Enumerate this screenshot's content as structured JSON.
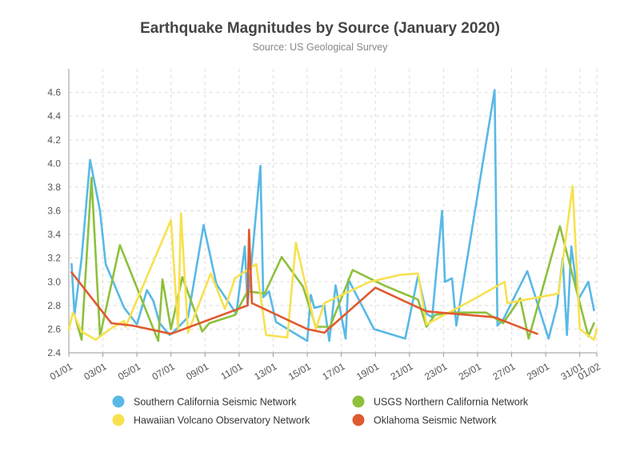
{
  "chart_data": {
    "type": "line",
    "title": "Earthquake Magnitudes by Source (January 2020)",
    "subtitle": "Source: US Geological Survey",
    "xlabel": "",
    "ylabel": "",
    "x_range": [
      "2020-01-01",
      "2020-02-01"
    ],
    "ylim": [
      2.4,
      4.8
    ],
    "y_ticks": [
      2.4,
      2.6,
      2.8,
      3.0,
      3.2,
      3.4,
      3.6,
      3.8,
      4.0,
      4.2,
      4.4,
      4.6
    ],
    "y_tick_labels": [
      "2.4",
      "2.6",
      "2.8",
      "3.0",
      "3.2",
      "3.4",
      "3.6",
      "3.8",
      "4.0",
      "4.2",
      "4.4",
      "4.6"
    ],
    "x_ticks": [
      "2020-01-01",
      "2020-01-03",
      "2020-01-05",
      "2020-01-07",
      "2020-01-09",
      "2020-01-11",
      "2020-01-13",
      "2020-01-15",
      "2020-01-17",
      "2020-01-19",
      "2020-01-21",
      "2020-01-23",
      "2020-01-25",
      "2020-01-27",
      "2020-01-29",
      "2020-01-31",
      "2020-02-01"
    ],
    "x_tick_labels": [
      "01/01",
      "03/01",
      "05/01",
      "07/01",
      "09/01",
      "11/01",
      "13/01",
      "15/01",
      "17/01",
      "19/01",
      "21/01",
      "23/01",
      "25/01",
      "27/01",
      "29/01",
      "31/01",
      "01/02"
    ],
    "grid": true,
    "grid_style": "dashed",
    "legend_position": "bottom",
    "series": [
      {
        "name": "Southern California Seismic Network",
        "color": "#58b9e6",
        "points": [
          [
            "2020-01-01 04:00",
            3.15
          ],
          [
            "2020-01-01 08:00",
            2.72
          ],
          [
            "2020-01-01 18:00",
            3.2
          ],
          [
            "2020-01-02 06:00",
            4.03
          ],
          [
            "2020-01-02 20:00",
            3.6
          ],
          [
            "2020-01-03 04:00",
            3.15
          ],
          [
            "2020-01-04 06:00",
            2.78
          ],
          [
            "2020-01-05 00:00",
            2.64
          ],
          [
            "2020-01-05 14:00",
            2.93
          ],
          [
            "2020-01-05 23:00",
            2.84
          ],
          [
            "2020-01-06 08:00",
            2.65
          ],
          [
            "2020-01-06 22:00",
            2.55
          ],
          [
            "2020-01-07 04:00",
            2.58
          ],
          [
            "2020-01-08 00:00",
            2.7
          ],
          [
            "2020-01-08 22:00",
            3.48
          ],
          [
            "2020-01-09 16:00",
            2.98
          ],
          [
            "2020-01-10 20:00",
            2.73
          ],
          [
            "2020-01-11 08:00",
            3.3
          ],
          [
            "2020-01-11 12:00",
            2.8
          ],
          [
            "2020-01-12 06:00",
            3.98
          ],
          [
            "2020-01-12 10:00",
            2.87
          ],
          [
            "2020-01-12 18:00",
            2.92
          ],
          [
            "2020-01-13 04:00",
            2.66
          ],
          [
            "2020-01-15 00:00",
            2.5
          ],
          [
            "2020-01-15 05:00",
            2.89
          ],
          [
            "2020-01-15 10:00",
            2.78
          ],
          [
            "2020-01-16 00:00",
            2.8
          ],
          [
            "2020-01-16 07:00",
            2.5
          ],
          [
            "2020-01-16 16:00",
            2.97
          ],
          [
            "2020-01-17 06:00",
            2.52
          ],
          [
            "2020-01-17 10:00",
            3.02
          ],
          [
            "2020-01-18 22:00",
            2.6
          ],
          [
            "2020-01-20 18:00",
            2.52
          ],
          [
            "2020-01-21 12:00",
            3.05
          ],
          [
            "2020-01-22 00:00",
            2.73
          ],
          [
            "2020-01-22 08:00",
            2.7
          ],
          [
            "2020-01-22 22:00",
            3.6
          ],
          [
            "2020-01-23 02:00",
            3.0
          ],
          [
            "2020-01-23 12:00",
            3.03
          ],
          [
            "2020-01-23 18:00",
            2.63
          ],
          [
            "2020-01-26 00:00",
            4.62
          ],
          [
            "2020-01-26 04:00",
            2.63
          ],
          [
            "2020-01-26 12:00",
            2.68
          ],
          [
            "2020-01-27 22:00",
            3.09
          ],
          [
            "2020-01-29 04:00",
            2.52
          ],
          [
            "2020-01-29 16:00",
            2.8
          ],
          [
            "2020-01-30 00:00",
            3.2
          ],
          [
            "2020-01-30 06:00",
            2.55
          ],
          [
            "2020-01-30 12:00",
            3.3
          ],
          [
            "2020-01-30 22:00",
            2.85
          ],
          [
            "2020-01-31 12:00",
            3.0
          ],
          [
            "2020-01-31 20:00",
            2.76
          ]
        ]
      },
      {
        "name": "USGS Northern California Network",
        "color": "#8dc03b",
        "points": [
          [
            "2020-01-01 10:00",
            2.68
          ],
          [
            "2020-01-01 18:00",
            2.51
          ],
          [
            "2020-01-02 08:00",
            3.88
          ],
          [
            "2020-01-02 20:00",
            2.54
          ],
          [
            "2020-01-04 00:00",
            3.31
          ],
          [
            "2020-01-06 06:00",
            2.5
          ],
          [
            "2020-01-06 12:00",
            3.02
          ],
          [
            "2020-01-07 00:00",
            2.6
          ],
          [
            "2020-01-07 16:00",
            3.04
          ],
          [
            "2020-01-08 20:00",
            2.58
          ],
          [
            "2020-01-09 06:00",
            2.65
          ],
          [
            "2020-01-10 18:00",
            2.72
          ],
          [
            "2020-01-11 12:00",
            2.92
          ],
          [
            "2020-01-12 12:00",
            2.9
          ],
          [
            "2020-01-13 12:00",
            3.21
          ],
          [
            "2020-01-14 18:00",
            2.96
          ],
          [
            "2020-01-15 12:00",
            2.62
          ],
          [
            "2020-01-16 08:00",
            2.62
          ],
          [
            "2020-01-17 16:00",
            3.1
          ],
          [
            "2020-01-19 12:00",
            2.97
          ],
          [
            "2020-01-21 12:00",
            2.85
          ],
          [
            "2020-01-22 00:00",
            2.62
          ],
          [
            "2020-01-22 12:00",
            2.72
          ],
          [
            "2020-01-23 12:00",
            2.74
          ],
          [
            "2020-01-25 12:00",
            2.74
          ],
          [
            "2020-01-26 12:00",
            2.65
          ],
          [
            "2020-01-27 12:00",
            2.86
          ],
          [
            "2020-01-28 00:00",
            2.52
          ],
          [
            "2020-01-29 20:00",
            3.47
          ],
          [
            "2020-01-31 12:00",
            2.54
          ],
          [
            "2020-01-31 20:00",
            2.65
          ]
        ]
      },
      {
        "name": "Hawaiian Volcano Observatory Network",
        "color": "#f7e14f",
        "points": [
          [
            "2020-01-01 00:00",
            2.6
          ],
          [
            "2020-01-01 06:00",
            2.74
          ],
          [
            "2020-01-01 18:00",
            2.58
          ],
          [
            "2020-01-02 14:00",
            2.51
          ],
          [
            "2020-01-03 10:00",
            2.6
          ],
          [
            "2020-01-04 06:00",
            2.67
          ],
          [
            "2020-01-04 08:00",
            2.62
          ],
          [
            "2020-01-07 00:00",
            3.52
          ],
          [
            "2020-01-07 10:00",
            2.6
          ],
          [
            "2020-01-07 14:00",
            3.58
          ],
          [
            "2020-01-08 00:00",
            2.57
          ],
          [
            "2020-01-09 08:00",
            3.07
          ],
          [
            "2020-01-10 04:00",
            2.77
          ],
          [
            "2020-01-10 18:00",
            3.03
          ],
          [
            "2020-01-11 12:00",
            3.1
          ],
          [
            "2020-01-12 00:00",
            3.15
          ],
          [
            "2020-01-12 14:00",
            2.55
          ],
          [
            "2020-01-13 20:00",
            2.53
          ],
          [
            "2020-01-14 08:00",
            3.33
          ],
          [
            "2020-01-15 12:00",
            2.6
          ],
          [
            "2020-01-16 00:00",
            2.82
          ],
          [
            "2020-01-18 16:00",
            3.0
          ],
          [
            "2020-01-20 12:00",
            3.06
          ],
          [
            "2020-01-21 12:00",
            3.07
          ],
          [
            "2020-01-22 00:00",
            2.64
          ],
          [
            "2020-01-24 18:00",
            2.85
          ],
          [
            "2020-01-26 14:00",
            3.0
          ],
          [
            "2020-01-26 18:00",
            2.82
          ],
          [
            "2020-01-29 18:00",
            2.9
          ],
          [
            "2020-01-30 14:00",
            3.81
          ],
          [
            "2020-01-31 00:00",
            2.6
          ],
          [
            "2020-01-31 20:00",
            2.51
          ],
          [
            "2020-02-01 00:00",
            2.6
          ]
        ]
      },
      {
        "name": "Oklahoma Seismic Network",
        "color": "#e05a2f",
        "points": [
          [
            "2020-01-01 04:00",
            3.08
          ],
          [
            "2020-01-03 12:00",
            2.65
          ],
          [
            "2020-01-04 18:00",
            2.63
          ],
          [
            "2020-01-07 00:00",
            2.56
          ],
          [
            "2020-01-11 12:00",
            2.8
          ],
          [
            "2020-01-11 14:00",
            3.44
          ],
          [
            "2020-01-11 18:00",
            2.82
          ],
          [
            "2020-01-15 00:00",
            2.6
          ],
          [
            "2020-01-16 00:00",
            2.57
          ],
          [
            "2020-01-19 00:00",
            2.95
          ],
          [
            "2020-01-22 00:00",
            2.75
          ],
          [
            "2020-01-26 00:00",
            2.7
          ],
          [
            "2020-01-28 12:00",
            2.56
          ]
        ]
      }
    ],
    "legend_order": [
      0,
      1,
      2,
      3
    ]
  }
}
